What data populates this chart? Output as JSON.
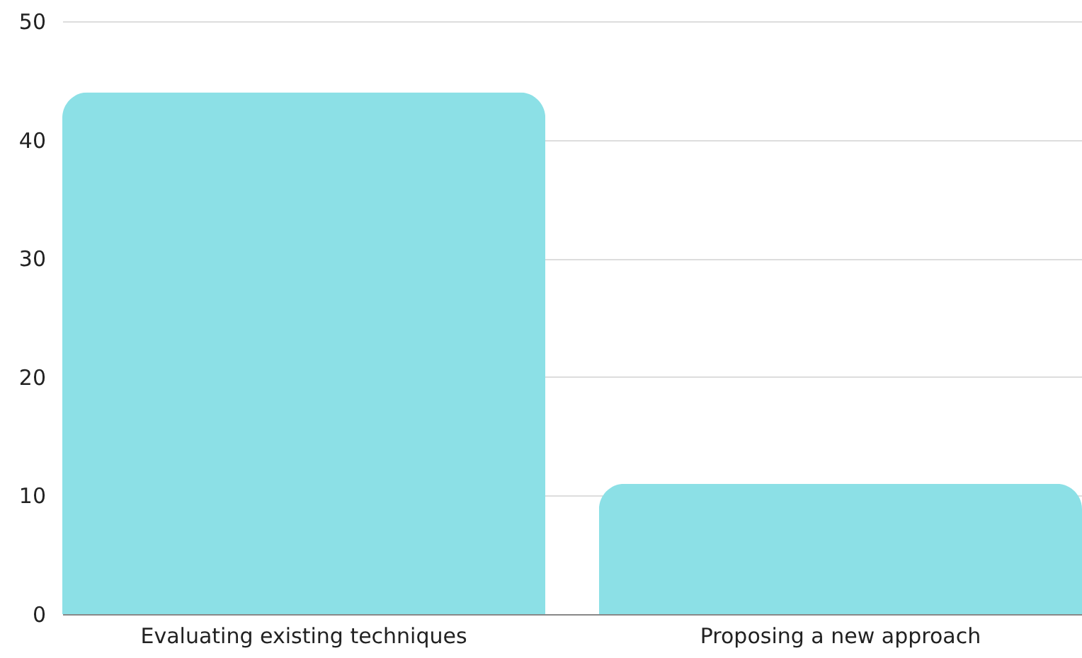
{
  "chart_data": {
    "type": "bar",
    "categories": [
      "Evaluating existing techniques",
      "Proposing a new approach"
    ],
    "values": [
      44,
      11
    ],
    "color": "#8ce0e6",
    "ylim": [
      0,
      50
    ],
    "yticks": [
      0,
      10,
      20,
      30,
      40,
      50
    ],
    "grid": "y"
  }
}
